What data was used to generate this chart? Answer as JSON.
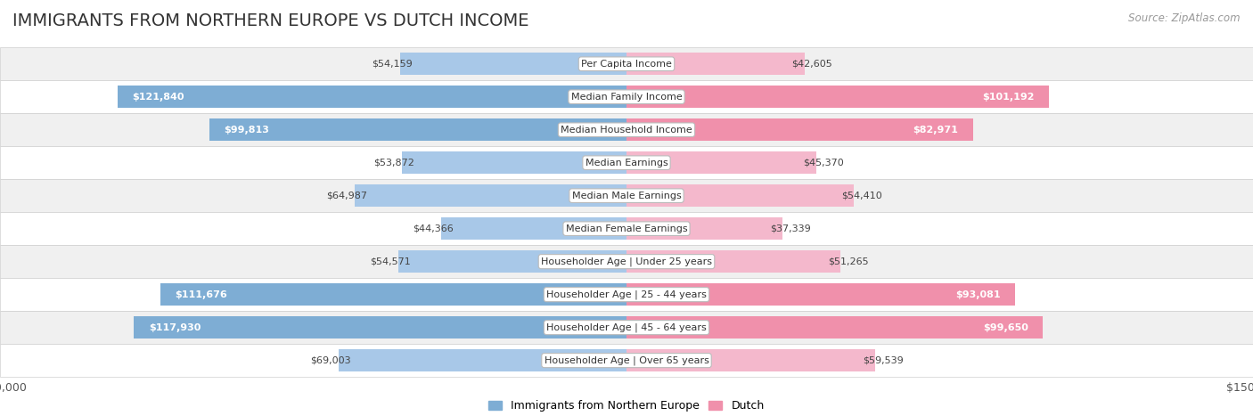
{
  "title": "IMMIGRANTS FROM NORTHERN EUROPE VS DUTCH INCOME",
  "source": "Source: ZipAtlas.com",
  "categories": [
    "Per Capita Income",
    "Median Family Income",
    "Median Household Income",
    "Median Earnings",
    "Median Male Earnings",
    "Median Female Earnings",
    "Householder Age | Under 25 years",
    "Householder Age | 25 - 44 years",
    "Householder Age | 45 - 64 years",
    "Householder Age | Over 65 years"
  ],
  "immigrants": [
    54159,
    121840,
    99813,
    53872,
    64987,
    44366,
    54571,
    111676,
    117930,
    69003
  ],
  "dutch": [
    42605,
    101192,
    82971,
    45370,
    54410,
    37339,
    51265,
    93081,
    99650,
    59539
  ],
  "immigrant_labels": [
    "$54,159",
    "$121,840",
    "$99,813",
    "$53,872",
    "$64,987",
    "$44,366",
    "$54,571",
    "$111,676",
    "$117,930",
    "$69,003"
  ],
  "dutch_labels": [
    "$42,605",
    "$101,192",
    "$82,971",
    "$45,370",
    "$54,410",
    "$37,339",
    "$51,265",
    "$93,081",
    "$99,650",
    "$59,539"
  ],
  "max_val": 150000,
  "bar_height": 0.68,
  "immigrant_color": "#7eadd4",
  "dutch_color": "#f090ab",
  "immigrant_color_light": "#a8c8e8",
  "dutch_color_light": "#f4b8cc",
  "inside_threshold": 75000,
  "background_color": "#ffffff",
  "row_bg_light": "#f0f0f0",
  "row_bg_white": "#ffffff",
  "label_fontsize": 8,
  "category_fontsize": 8,
  "title_fontsize": 14,
  "source_fontsize": 8.5
}
